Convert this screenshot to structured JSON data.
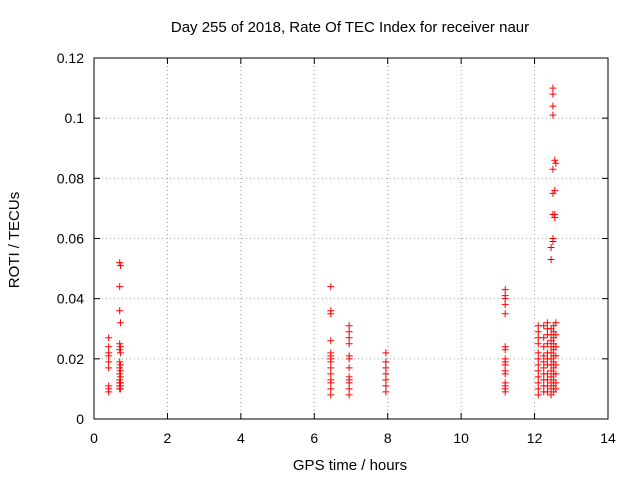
{
  "chart_data": {
    "type": "scatter",
    "title": "Day 255 of 2018, Rate Of TEC Index for receiver naur",
    "xlabel": "GPS time / hours",
    "ylabel": "ROTI / TECUs",
    "xlim": [
      0,
      14
    ],
    "ylim": [
      0,
      0.12
    ],
    "xticks": [
      0,
      2,
      4,
      6,
      8,
      10,
      12,
      14
    ],
    "yticks": [
      0,
      0.02,
      0.04,
      0.06,
      0.08,
      0.1,
      0.12
    ],
    "xtick_labels": [
      "0",
      "2",
      "4",
      "6",
      "8",
      "10",
      "12",
      "14"
    ],
    "ytick_labels": [
      "0",
      "0.02",
      "0.04",
      "0.06",
      "0.08",
      "0.1",
      "0.12"
    ],
    "grid": true,
    "marker": "+",
    "color": "#ff0000",
    "series": [
      {
        "name": "ROTI",
        "points": [
          [
            0.4,
            0.027
          ],
          [
            0.4,
            0.024
          ],
          [
            0.4,
            0.022
          ],
          [
            0.4,
            0.021
          ],
          [
            0.4,
            0.019
          ],
          [
            0.4,
            0.017
          ],
          [
            0.4,
            0.011
          ],
          [
            0.4,
            0.01
          ],
          [
            0.4,
            0.009
          ],
          [
            0.7,
            0.052
          ],
          [
            0.72,
            0.051
          ],
          [
            0.7,
            0.044
          ],
          [
            0.7,
            0.036
          ],
          [
            0.72,
            0.032
          ],
          [
            0.7,
            0.025
          ],
          [
            0.72,
            0.024
          ],
          [
            0.7,
            0.023
          ],
          [
            0.72,
            0.022
          ],
          [
            0.7,
            0.019
          ],
          [
            0.72,
            0.018
          ],
          [
            0.7,
            0.017
          ],
          [
            0.72,
            0.016
          ],
          [
            0.7,
            0.015
          ],
          [
            0.72,
            0.014
          ],
          [
            0.7,
            0.013
          ],
          [
            0.72,
            0.012
          ],
          [
            0.7,
            0.012
          ],
          [
            0.72,
            0.011
          ],
          [
            0.7,
            0.011
          ],
          [
            0.72,
            0.01
          ],
          [
            0.7,
            0.01
          ],
          [
            6.45,
            0.044
          ],
          [
            6.45,
            0.036
          ],
          [
            6.45,
            0.035
          ],
          [
            6.45,
            0.026
          ],
          [
            6.45,
            0.022
          ],
          [
            6.45,
            0.021
          ],
          [
            6.45,
            0.02
          ],
          [
            6.45,
            0.019
          ],
          [
            6.45,
            0.017
          ],
          [
            6.45,
            0.015
          ],
          [
            6.45,
            0.013
          ],
          [
            6.45,
            0.012
          ],
          [
            6.45,
            0.01
          ],
          [
            6.45,
            0.008
          ],
          [
            6.95,
            0.031
          ],
          [
            6.95,
            0.029
          ],
          [
            6.95,
            0.027
          ],
          [
            6.95,
            0.025
          ],
          [
            6.95,
            0.021
          ],
          [
            6.95,
            0.02
          ],
          [
            6.95,
            0.017
          ],
          [
            6.95,
            0.014
          ],
          [
            6.95,
            0.013
          ],
          [
            6.95,
            0.012
          ],
          [
            6.95,
            0.01
          ],
          [
            6.95,
            0.008
          ],
          [
            7.95,
            0.022
          ],
          [
            7.95,
            0.019
          ],
          [
            7.95,
            0.017
          ],
          [
            7.95,
            0.015
          ],
          [
            7.95,
            0.013
          ],
          [
            7.95,
            0.011
          ],
          [
            7.95,
            0.009
          ],
          [
            11.2,
            0.043
          ],
          [
            11.2,
            0.041
          ],
          [
            11.2,
            0.04
          ],
          [
            11.2,
            0.038
          ],
          [
            11.2,
            0.035
          ],
          [
            11.2,
            0.024
          ],
          [
            11.2,
            0.023
          ],
          [
            11.2,
            0.02
          ],
          [
            11.2,
            0.019
          ],
          [
            11.2,
            0.018
          ],
          [
            11.2,
            0.016
          ],
          [
            11.2,
            0.015
          ],
          [
            11.2,
            0.012
          ],
          [
            11.2,
            0.011
          ],
          [
            11.2,
            0.01
          ],
          [
            11.2,
            0.009
          ],
          [
            12.1,
            0.031
          ],
          [
            12.1,
            0.029
          ],
          [
            12.1,
            0.027
          ],
          [
            12.1,
            0.025
          ],
          [
            12.1,
            0.022
          ],
          [
            12.1,
            0.02
          ],
          [
            12.1,
            0.018
          ],
          [
            12.1,
            0.016
          ],
          [
            12.1,
            0.014
          ],
          [
            12.1,
            0.012
          ],
          [
            12.1,
            0.01
          ],
          [
            12.1,
            0.008
          ],
          [
            12.25,
            0.031
          ],
          [
            12.25,
            0.027
          ],
          [
            12.25,
            0.024
          ],
          [
            12.25,
            0.021
          ],
          [
            12.25,
            0.019
          ],
          [
            12.25,
            0.017
          ],
          [
            12.25,
            0.015
          ],
          [
            12.25,
            0.013
          ],
          [
            12.25,
            0.011
          ],
          [
            12.25,
            0.009
          ],
          [
            12.35,
            0.032
          ],
          [
            12.35,
            0.03
          ],
          [
            12.35,
            0.028
          ],
          [
            12.35,
            0.025
          ],
          [
            12.35,
            0.022
          ],
          [
            12.35,
            0.02
          ],
          [
            12.35,
            0.018
          ],
          [
            12.35,
            0.015
          ],
          [
            12.35,
            0.013
          ],
          [
            12.35,
            0.011
          ],
          [
            12.35,
            0.009
          ],
          [
            12.45,
            0.057
          ],
          [
            12.45,
            0.053
          ],
          [
            12.45,
            0.03
          ],
          [
            12.45,
            0.028
          ],
          [
            12.45,
            0.026
          ],
          [
            12.45,
            0.024
          ],
          [
            12.45,
            0.022
          ],
          [
            12.45,
            0.02
          ],
          [
            12.45,
            0.018
          ],
          [
            12.45,
            0.016
          ],
          [
            12.45,
            0.014
          ],
          [
            12.45,
            0.012
          ],
          [
            12.45,
            0.01
          ],
          [
            12.45,
            0.008
          ],
          [
            12.5,
            0.11
          ],
          [
            12.5,
            0.108
          ],
          [
            12.5,
            0.104
          ],
          [
            12.5,
            0.101
          ],
          [
            12.5,
            0.083
          ],
          [
            12.5,
            0.075
          ],
          [
            12.5,
            0.068
          ],
          [
            12.5,
            0.06
          ],
          [
            12.5,
            0.059
          ],
          [
            12.52,
            0.031
          ],
          [
            12.52,
            0.029
          ],
          [
            12.52,
            0.027
          ],
          [
            12.52,
            0.025
          ],
          [
            12.52,
            0.023
          ],
          [
            12.52,
            0.021
          ],
          [
            12.52,
            0.019
          ],
          [
            12.52,
            0.017
          ],
          [
            12.52,
            0.015
          ],
          [
            12.52,
            0.013
          ],
          [
            12.52,
            0.011
          ],
          [
            12.52,
            0.009
          ],
          [
            12.55,
            0.086
          ],
          [
            12.58,
            0.085
          ],
          [
            12.55,
            0.076
          ],
          [
            12.55,
            0.068
          ],
          [
            12.55,
            0.067
          ],
          [
            12.58,
            0.032
          ],
          [
            12.58,
            0.028
          ],
          [
            12.58,
            0.024
          ],
          [
            12.58,
            0.021
          ],
          [
            12.58,
            0.018
          ],
          [
            12.58,
            0.015
          ],
          [
            12.58,
            0.012
          ],
          [
            12.58,
            0.01
          ]
        ]
      }
    ]
  }
}
